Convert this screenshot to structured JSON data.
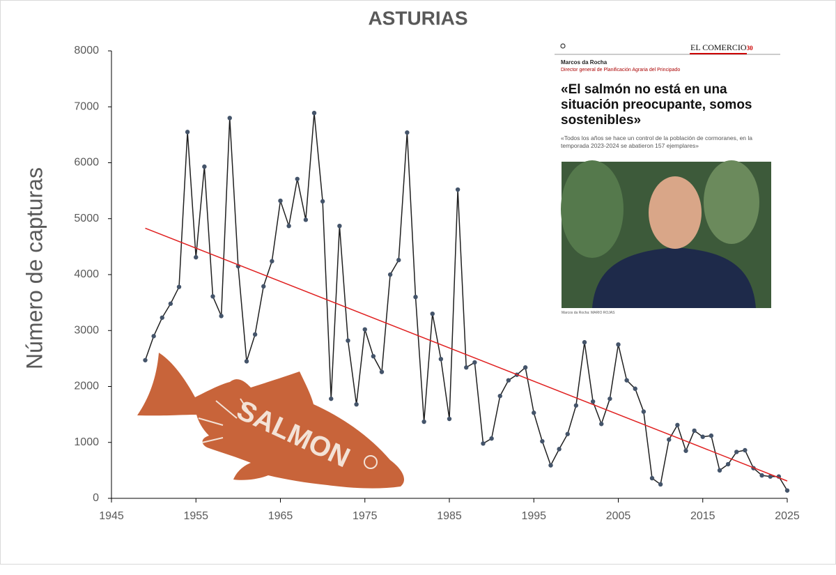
{
  "chart_data": {
    "type": "line",
    "title": "ASTURIAS",
    "y_label": "Número de capturas",
    "x": [
      1949,
      1950,
      1951,
      1952,
      1953,
      1954,
      1955,
      1956,
      1957,
      1958,
      1959,
      1960,
      1961,
      1962,
      1963,
      1964,
      1965,
      1966,
      1967,
      1968,
      1969,
      1970,
      1971,
      1972,
      1973,
      1974,
      1975,
      1976,
      1977,
      1978,
      1979,
      1980,
      1981,
      1982,
      1983,
      1984,
      1985,
      1986,
      1987,
      1988,
      1989,
      1990,
      1991,
      1992,
      1993,
      1994,
      1995,
      1996,
      1997,
      1998,
      1999,
      2000,
      2001,
      2002,
      2003,
      2004,
      2005,
      2006,
      2007,
      2008,
      2009,
      2010,
      2011,
      2012,
      2013,
      2014,
      2015,
      2016,
      2017,
      2018,
      2019,
      2020,
      2021,
      2022,
      2023,
      2024,
      2025
    ],
    "series": [
      {
        "name": "Capturas",
        "color": "#1f1f1f",
        "marker_color": "#44546a",
        "values": [
          2470,
          2900,
          3230,
          3480,
          3780,
          6550,
          4310,
          5930,
          3610,
          3260,
          6800,
          4150,
          2450,
          2930,
          3790,
          4240,
          5320,
          4870,
          5710,
          4980,
          6890,
          5310,
          1780,
          4870,
          2820,
          1680,
          3020,
          2540,
          2260,
          4000,
          4260,
          6540,
          3600,
          1370,
          3300,
          2490,
          1420,
          5520,
          2340,
          2430,
          980,
          1070,
          1830,
          2110,
          2210,
          2340,
          1530,
          1020,
          590,
          880,
          1150,
          1660,
          2790,
          1730,
          1330,
          1780,
          2750,
          2110,
          1960,
          1550,
          360,
          250,
          1050,
          1310,
          850,
          1210,
          1100,
          1120,
          500,
          610,
          830,
          860,
          540,
          410,
          390,
          390,
          140
        ]
      }
    ],
    "trend": {
      "color": "#e02020",
      "x": [
        1949,
        2025
      ],
      "values": [
        4830,
        310
      ]
    },
    "xlim": [
      1945,
      2025
    ],
    "xticks": [
      1945,
      1955,
      1965,
      1975,
      1985,
      1995,
      2005,
      2015,
      2025
    ],
    "ylim": [
      0,
      8000
    ],
    "yticks": [
      0,
      1000,
      2000,
      3000,
      4000,
      5000,
      6000,
      7000,
      8000
    ],
    "grid": false
  },
  "illustration": {
    "text": "SALMON"
  },
  "inset": {
    "logo": "EL COMERCIO",
    "logo_badge": "30",
    "author": "Marcos da Rocha",
    "role": "Director general de Planificación Agraria del Principado",
    "headline": "«El salmón no está en una situación preocupante, somos sostenibles»",
    "subheadline": "«Todos los años se hace un control de la población de cormoranes, en la temporada 2023-2024 se abatieron 157 ejemplares»",
    "caption": "Marcos da Rocha: MARIO ROJAS"
  }
}
